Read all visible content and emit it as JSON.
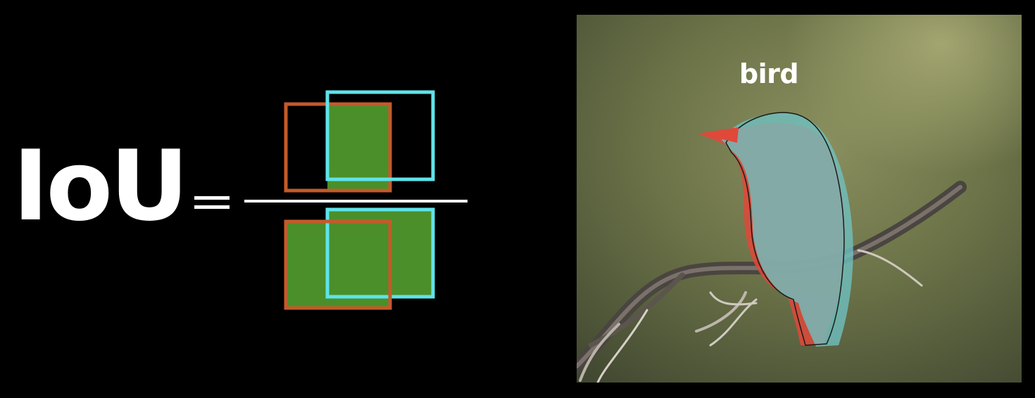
{
  "formula": {
    "title": "IoU"
  },
  "segmentation": {
    "label": "bird"
  },
  "colors": {
    "background": "#000000",
    "text": "#ffffff",
    "prediction_box": "#c45a2a",
    "ground_truth_box": "#5fe3ea",
    "overlap_fill": "#4a8f2a",
    "prediction_mask": "#e0483a",
    "ground_truth_mask": "#6fc0c0"
  }
}
